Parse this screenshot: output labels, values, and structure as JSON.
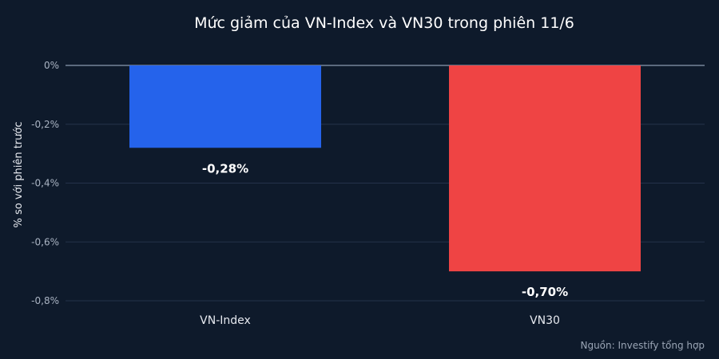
{
  "chart_data": {
    "type": "bar",
    "title": "Mức giảm của VN-Index và VN30 trong phiên 11/6",
    "ylabel": "% so với phiên trước",
    "xlabel": "",
    "categories": [
      "VN-Index",
      "VN30"
    ],
    "values": [
      -0.28,
      -0.7
    ],
    "data_labels": [
      "-0,28%",
      "-0,70%"
    ],
    "bar_colors": [
      "#2563eb",
      "#ef4444"
    ],
    "ylim": [
      -0.8,
      0
    ],
    "yticks": [
      0,
      -0.2,
      -0.4,
      -0.6,
      -0.8
    ],
    "ytick_labels": [
      "0%",
      "-0,2%",
      "-0,4%",
      "-0,6%",
      "-0,8%"
    ],
    "grid": true,
    "legend": "none",
    "source": "Nguồn: Investify tổng hợp"
  },
  "colors": {
    "background": "#0e1a2b",
    "grid": "#24324a",
    "zero_line": "#8a9ab0"
  }
}
